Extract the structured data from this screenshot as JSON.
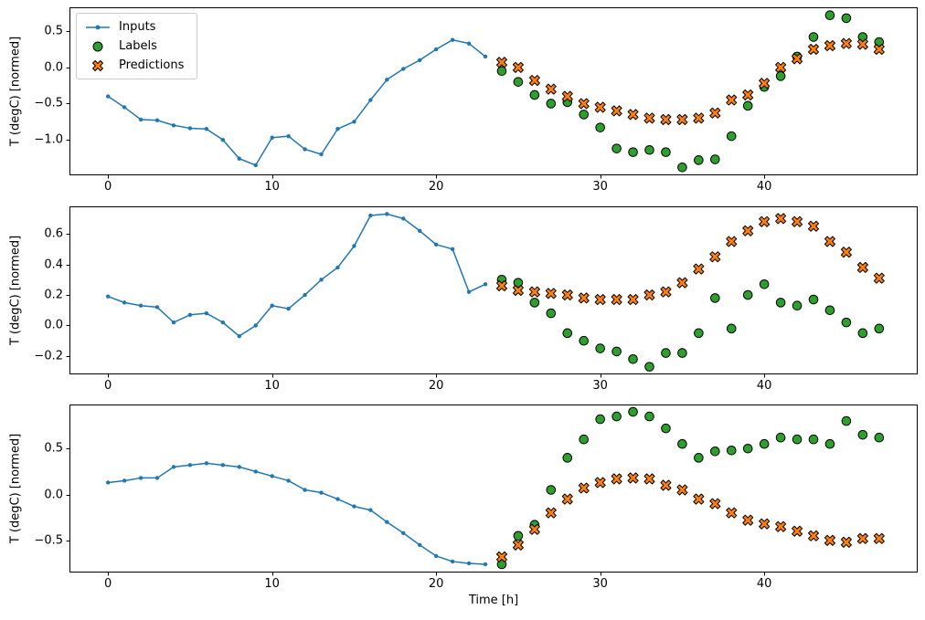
{
  "figure": {
    "background": "#ffffff"
  },
  "xlabel": "Time [h]",
  "legend": {
    "position": "upper-left",
    "items": [
      "Inputs",
      "Labels",
      "Predictions"
    ]
  },
  "series_styles": {
    "inputs": {
      "color": "#1f77b4",
      "marker": "line-with-dot-markers"
    },
    "labels": {
      "color": "#2ca02c",
      "marker": "filled-circle",
      "edge": "#000000"
    },
    "predictions": {
      "color": "#ff7f0e",
      "marker": "X",
      "edge": "#000000"
    }
  },
  "x_hours_inputs": [
    0,
    1,
    2,
    3,
    4,
    5,
    6,
    7,
    8,
    9,
    10,
    11,
    12,
    13,
    14,
    15,
    16,
    17,
    18,
    19,
    20,
    21,
    22,
    23
  ],
  "x_hours_future": [
    24,
    25,
    26,
    27,
    28,
    29,
    30,
    31,
    32,
    33,
    34,
    35,
    36,
    37,
    38,
    39,
    40,
    41,
    42,
    43,
    44,
    45,
    46,
    47
  ],
  "chart_data": [
    {
      "type": "line",
      "title": "",
      "ylabel": "T (degC) [normed]",
      "xlim": [
        -2.35,
        49.35
      ],
      "ylim": [
        -1.49,
        0.83
      ],
      "xticks": [
        0,
        10,
        20,
        30,
        40
      ],
      "yticks": [
        0.5,
        0.0,
        -0.5,
        -1.0
      ],
      "grid": false,
      "series": [
        {
          "name": "Inputs",
          "style": "line-with-dot-markers",
          "x": "x_hours_inputs",
          "values": [
            -0.4,
            -0.55,
            -0.72,
            -0.73,
            -0.8,
            -0.84,
            -0.85,
            -1.0,
            -1.26,
            -1.35,
            -0.97,
            -0.95,
            -1.13,
            -1.2,
            -0.85,
            -0.75,
            -0.45,
            -0.17,
            -0.02,
            0.1,
            0.25,
            0.38,
            0.33,
            0.15
          ]
        },
        {
          "name": "Labels",
          "style": "scatter-circle",
          "x": "x_hours_future",
          "values": [
            -0.05,
            -0.2,
            -0.38,
            -0.5,
            -0.48,
            -0.65,
            -0.83,
            -1.12,
            -1.17,
            -1.14,
            -1.17,
            -1.38,
            -1.28,
            -1.27,
            -0.95,
            -0.53,
            -0.27,
            -0.12,
            0.15,
            0.42,
            0.72,
            0.68,
            0.42,
            0.35
          ]
        },
        {
          "name": "Predictions",
          "style": "scatter-X",
          "x": "x_hours_future",
          "values": [
            0.07,
            0.0,
            -0.18,
            -0.3,
            -0.4,
            -0.5,
            -0.55,
            -0.6,
            -0.65,
            -0.7,
            -0.72,
            -0.72,
            -0.7,
            -0.63,
            -0.45,
            -0.38,
            -0.22,
            0.0,
            0.12,
            0.25,
            0.3,
            0.33,
            0.32,
            0.25
          ]
        }
      ]
    },
    {
      "type": "line",
      "title": "",
      "ylabel": "T (degC) [normed]",
      "xlim": [
        -2.35,
        49.35
      ],
      "ylim": [
        -0.32,
        0.78
      ],
      "xticks": [
        0,
        10,
        20,
        30,
        40
      ],
      "yticks": [
        0.6,
        0.4,
        0.2,
        0.0,
        -0.2
      ],
      "grid": false,
      "series": [
        {
          "name": "Inputs",
          "style": "line-with-dot-markers",
          "x": "x_hours_inputs",
          "values": [
            0.19,
            0.15,
            0.13,
            0.12,
            0.02,
            0.07,
            0.08,
            0.02,
            -0.07,
            0.0,
            0.13,
            0.11,
            0.2,
            0.3,
            0.38,
            0.52,
            0.72,
            0.73,
            0.7,
            0.62,
            0.53,
            0.5,
            0.22,
            0.27
          ]
        },
        {
          "name": "Labels",
          "style": "scatter-circle",
          "x": "x_hours_future",
          "values": [
            0.3,
            0.28,
            0.15,
            0.08,
            -0.05,
            -0.1,
            -0.15,
            -0.17,
            -0.22,
            -0.27,
            -0.18,
            -0.18,
            -0.05,
            0.18,
            -0.02,
            0.2,
            0.27,
            0.15,
            0.13,
            0.17,
            0.1,
            0.02,
            -0.05,
            -0.02
          ]
        },
        {
          "name": "Predictions",
          "style": "scatter-X",
          "x": "x_hours_future",
          "values": [
            0.26,
            0.23,
            0.22,
            0.21,
            0.2,
            0.18,
            0.17,
            0.17,
            0.17,
            0.2,
            0.22,
            0.28,
            0.37,
            0.45,
            0.55,
            0.62,
            0.68,
            0.7,
            0.68,
            0.65,
            0.55,
            0.48,
            0.38,
            0.31
          ]
        }
      ]
    },
    {
      "type": "line",
      "title": "",
      "ylabel": "T (degC) [normed]",
      "xlim": [
        -2.35,
        49.35
      ],
      "ylim": [
        -0.85,
        0.98
      ],
      "xticks": [
        0,
        10,
        20,
        30,
        40
      ],
      "yticks": [
        0.5,
        0.0,
        -0.5
      ],
      "grid": false,
      "series": [
        {
          "name": "Inputs",
          "style": "line-with-dot-markers",
          "x": "x_hours_inputs",
          "values": [
            0.13,
            0.15,
            0.18,
            0.18,
            0.3,
            0.32,
            0.34,
            0.32,
            0.3,
            0.25,
            0.2,
            0.15,
            0.05,
            0.02,
            -0.05,
            -0.13,
            -0.17,
            -0.3,
            -0.42,
            -0.55,
            -0.67,
            -0.73,
            -0.75,
            -0.76
          ]
        },
        {
          "name": "Labels",
          "style": "scatter-circle",
          "x": "x_hours_future",
          "values": [
            -0.76,
            -0.45,
            -0.33,
            0.05,
            0.4,
            0.6,
            0.82,
            0.85,
            0.9,
            0.85,
            0.72,
            0.55,
            0.4,
            0.47,
            0.48,
            0.5,
            0.55,
            0.62,
            0.6,
            0.6,
            0.55,
            0.8,
            0.65,
            0.62
          ]
        },
        {
          "name": "Predictions",
          "style": "scatter-X",
          "x": "x_hours_future",
          "values": [
            -0.68,
            -0.55,
            -0.38,
            -0.2,
            -0.05,
            0.07,
            0.13,
            0.17,
            0.18,
            0.17,
            0.1,
            0.05,
            -0.05,
            -0.1,
            -0.2,
            -0.28,
            -0.32,
            -0.35,
            -0.4,
            -0.45,
            -0.5,
            -0.52,
            -0.48,
            -0.48
          ]
        }
      ]
    }
  ]
}
